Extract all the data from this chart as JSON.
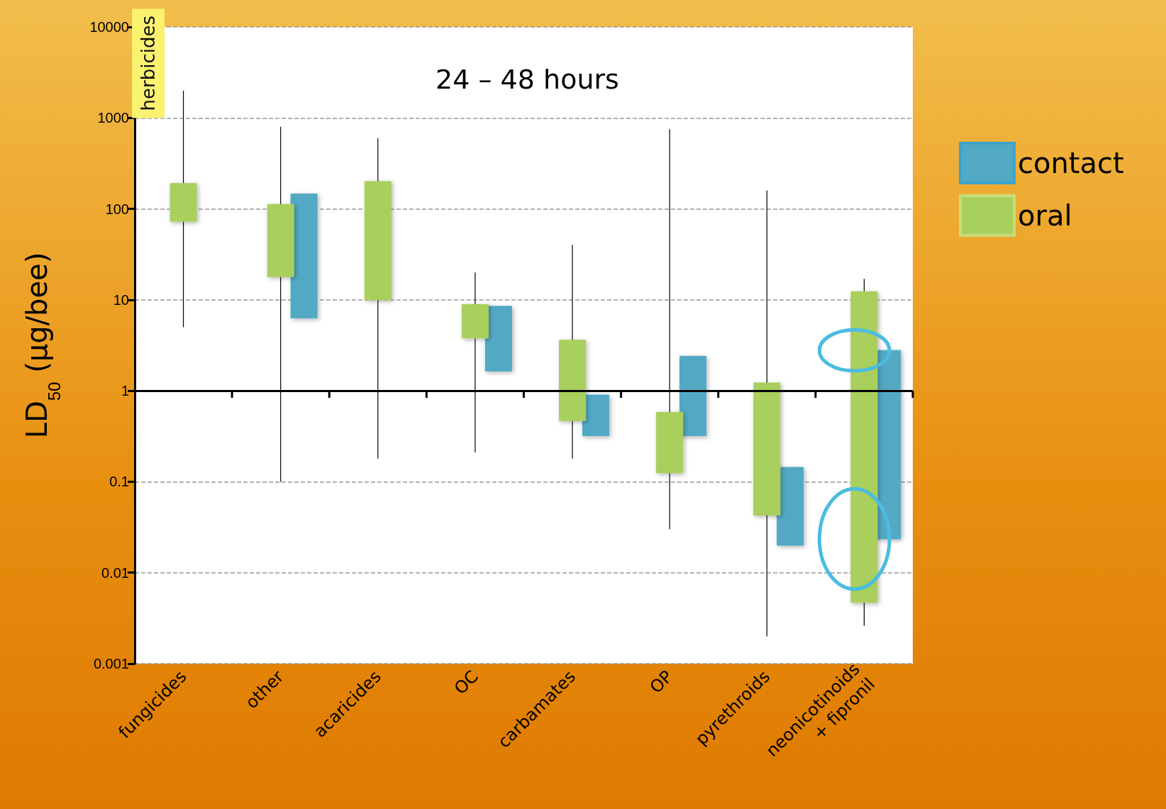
{
  "chart_data": {
    "type": "bar",
    "title": "24 – 48 hours",
    "ylabel": "LD$_{50}$ (μg/bee)",
    "categories": [
      "fungicides",
      "other",
      "acaricides",
      "OC",
      "carbamates",
      "OP",
      "pyrethroids",
      "neonicotinoids\n+ fipronil"
    ],
    "series": [
      {
        "name": "contact",
        "color": "#52a9c4",
        "base": [
          null,
          6.3,
          null,
          1.65,
          0.32,
          0.32,
          0.02,
          0.0235
        ],
        "values": [
          null,
          139.7,
          null,
          6.85,
          0.58,
          2.08,
          0.124,
          2.7565
        ]
      },
      {
        "name": "oral",
        "color": "#a9cf5c",
        "base": [
          73,
          18,
          10,
          3.8,
          0.47,
          0.125,
          0.043,
          0.0047
        ],
        "values": [
          117,
          94,
          190,
          5.1,
          3.13,
          0.455,
          1.177,
          12.2953
        ]
      },
      {
        "color": "#000000",
        "base": [
          5,
          0.1,
          0.18,
          0.21,
          0.18,
          0.03,
          0.002,
          0.0026
        ],
        "values": [
          1995,
          799.9,
          599.82,
          19.79,
          39.82,
          749.97,
          159.998,
          16.9974
        ]
      }
    ],
    "log": "y",
    "ylim": [
      0.001,
      10000
    ],
    "yticks": [
      0.001,
      0.01,
      0.1,
      1,
      10,
      100,
      1000,
      10000
    ],
    "grid": "y",
    "legend": "right",
    "ref_lines": [
      {
        "axis": "y",
        "value": 1,
        "color": "#000000"
      }
    ],
    "annotations": [
      "herbicides"
    ]
  }
}
